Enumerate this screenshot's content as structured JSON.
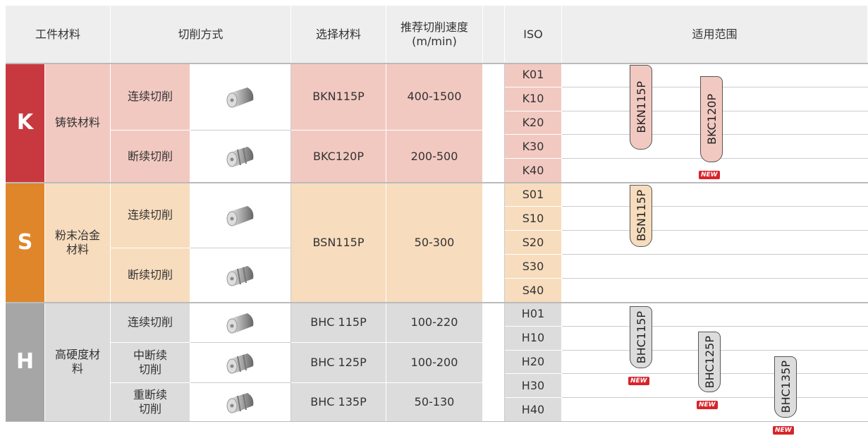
{
  "header": {
    "material": "工件材料",
    "cutting": "切削方式",
    "grade": "选择材料",
    "speed": [
      "推荐切削速度",
      "(m/min)"
    ],
    "iso": "ISO",
    "range": "适用范围"
  },
  "groups": [
    {
      "letter": "K",
      "name": [
        "铸铁材料"
      ],
      "cuts": [
        [
          "连续切削"
        ],
        [
          "断续切削"
        ]
      ],
      "grades": [
        {
          "name": "BKN115P",
          "speed": "400-1500"
        },
        {
          "name": "BKC120P",
          "speed": "200-500"
        }
      ],
      "iso": [
        "K01",
        "K10",
        "K20",
        "K30",
        "K40"
      ],
      "ranges": [
        {
          "label": "BKN115P"
        },
        {
          "label": "BKC120P",
          "badge": "NEW"
        }
      ]
    },
    {
      "letter": "S",
      "name": [
        "粉末冶金",
        "材料"
      ],
      "cuts": [
        [
          "连续切削"
        ],
        [
          "断续切削"
        ]
      ],
      "grades": [
        {
          "name": "BSN115P",
          "speed": "50-300"
        }
      ],
      "iso": [
        "S01",
        "S10",
        "S20",
        "S30",
        "S40"
      ],
      "ranges": [
        {
          "label": "BSN115P"
        }
      ]
    },
    {
      "letter": "H",
      "name": [
        "高硬度材",
        "料"
      ],
      "cuts": [
        [
          "连续切削"
        ],
        [
          "中断续",
          "切削"
        ],
        [
          "重断续",
          "切削"
        ]
      ],
      "grades": [
        {
          "name": "BHC 115P",
          "speed": "100-220"
        },
        {
          "name": "BHC 125P",
          "speed": "100-200"
        },
        {
          "name": "BHC 135P",
          "speed": "50-130"
        }
      ],
      "iso": [
        "H01",
        "H10",
        "H20",
        "H30",
        "H40"
      ],
      "ranges": [
        {
          "label": "BHC115P",
          "badge": "NEW"
        },
        {
          "label": "BHC125P",
          "badge": "NEW"
        },
        {
          "label": "BHC135P",
          "badge": "NEW"
        }
      ]
    }
  ]
}
